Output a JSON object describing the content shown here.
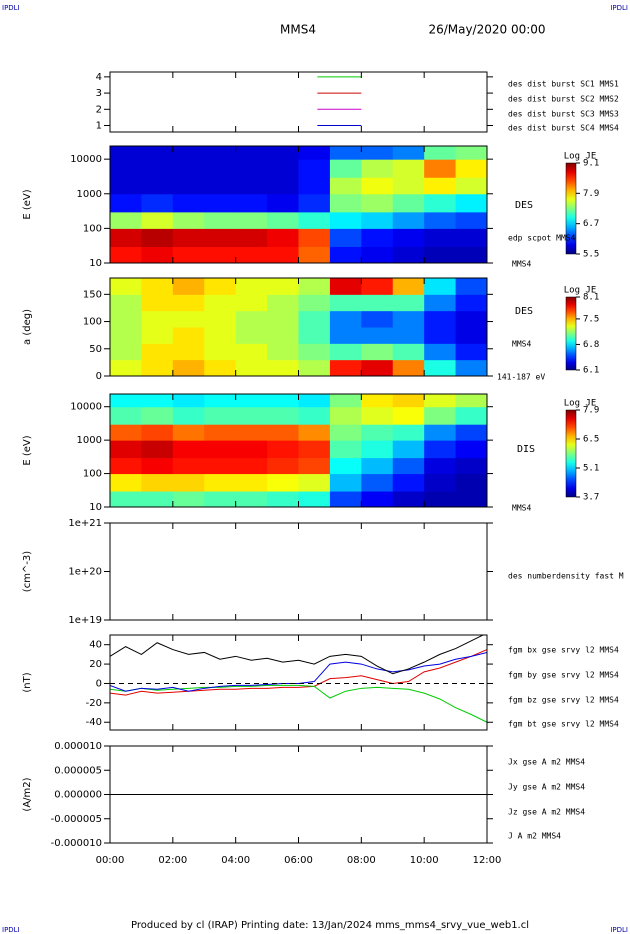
{
  "header": {
    "corner_left": "IPDLI",
    "corner_right": "IPDLI",
    "title": "MMS4",
    "date": "26/May/2020 00:00"
  },
  "footer": {
    "text": "Produced by cl (IRAP)   Printing date: 13/Jan/2024   mms_mms4_srvy_vue_web1.cl",
    "corner_left": "IPDLI",
    "corner_right": "IPDLI"
  },
  "chart_data": [
    {
      "type": "line",
      "ylim": [
        0.6,
        4.3
      ],
      "yticks": [
        1,
        2,
        3,
        4
      ],
      "series": [
        {
          "name": "des dist burst SC1 MMS1",
          "color": "#0000cc",
          "x": [
            6.6,
            8.0
          ],
          "values": [
            1,
            1
          ]
        },
        {
          "name": "des dist burst SC2 MMS2",
          "color": "#cc00cc",
          "x": [
            6.6,
            8.0
          ],
          "values": [
            2,
            2
          ]
        },
        {
          "name": "des dist burst SC3 MMS3",
          "color": "#cc0000",
          "x": [
            6.6,
            8.0
          ],
          "values": [
            3,
            3
          ]
        },
        {
          "name": "des dist burst SC4 MMS4",
          "color": "#00cc00",
          "x": [
            6.6,
            8.0
          ],
          "values": [
            4,
            4
          ]
        }
      ]
    },
    {
      "type": "heatmap",
      "ylabel": "E (eV)",
      "log": true,
      "ylim": [
        10,
        24000
      ],
      "yticks": [
        10,
        100,
        1000,
        10000
      ],
      "labels": [
        "DES",
        "edp scpot MMS4",
        "MMS4"
      ],
      "colorbar": {
        "label": "Log JE",
        "lim": [
          5.5,
          9.1
        ],
        "ticks": [
          5.5,
          6.7,
          7.9,
          9.1
        ]
      },
      "x": [
        0,
        1,
        2,
        3,
        4,
        5,
        6,
        7,
        8,
        9,
        10,
        11,
        12
      ],
      "ybins": [
        10,
        30,
        100,
        300,
        1000,
        3000,
        10000,
        24000
      ],
      "values": [
        [
          8.6,
          8.7,
          8.6,
          8.6,
          8.6,
          8.6,
          8.3,
          6.0,
          5.9,
          5.8,
          5.7,
          5.7
        ],
        [
          8.8,
          8.9,
          8.8,
          8.8,
          8.8,
          8.7,
          8.4,
          6.2,
          6.0,
          5.9,
          5.8,
          5.8
        ],
        [
          7.4,
          7.6,
          7.4,
          7.3,
          7.3,
          7.2,
          7.0,
          6.8,
          6.7,
          6.5,
          6.3,
          6.2
        ],
        [
          6.0,
          6.1,
          6.0,
          6.0,
          6.0,
          5.9,
          6.1,
          7.3,
          7.4,
          7.2,
          7.0,
          6.8
        ],
        [
          5.8,
          5.8,
          5.8,
          5.8,
          5.8,
          5.8,
          6.0,
          7.5,
          7.7,
          7.6,
          7.8,
          7.6
        ],
        [
          5.8,
          5.8,
          5.8,
          5.8,
          5.8,
          5.8,
          6.0,
          7.2,
          7.5,
          7.6,
          8.2,
          7.8
        ],
        [
          5.8,
          5.8,
          5.8,
          5.8,
          5.8,
          5.8,
          5.9,
          6.3,
          6.3,
          6.4,
          7.2,
          7.3
        ]
      ]
    },
    {
      "type": "heatmap",
      "ylabel": "a (deg)",
      "ylim": [
        0,
        180
      ],
      "yticks": [
        0,
        50,
        100,
        150
      ],
      "labels": [
        "DES",
        "MMS4",
        "141-187 eV"
      ],
      "colorbar": {
        "label": "Log JE",
        "lim": [
          6.1,
          8.1
        ],
        "ticks": [
          6.1,
          6.8,
          7.5,
          8.1
        ]
      },
      "x": [
        0,
        1,
        2,
        3,
        4,
        5,
        6,
        7,
        8,
        9,
        10,
        11,
        12
      ],
      "ybins": [
        0,
        30,
        60,
        90,
        120,
        150,
        180
      ],
      "values": [
        [
          7.3,
          7.4,
          7.5,
          7.4,
          7.3,
          7.3,
          7.2,
          7.8,
          7.9,
          7.6,
          6.9,
          6.6
        ],
        [
          7.2,
          7.4,
          7.4,
          7.3,
          7.3,
          7.2,
          7.1,
          7.0,
          7.1,
          7.0,
          6.6,
          6.4
        ],
        [
          7.2,
          7.3,
          7.4,
          7.3,
          7.2,
          7.2,
          7.0,
          6.6,
          6.6,
          6.6,
          6.4,
          6.3
        ],
        [
          7.2,
          7.3,
          7.3,
          7.3,
          7.2,
          7.2,
          7.0,
          6.6,
          6.5,
          6.6,
          6.4,
          6.3
        ],
        [
          7.2,
          7.4,
          7.4,
          7.3,
          7.3,
          7.2,
          7.1,
          7.0,
          7.0,
          7.0,
          6.6,
          6.4
        ],
        [
          7.3,
          7.4,
          7.5,
          7.4,
          7.3,
          7.3,
          7.2,
          7.9,
          7.8,
          7.5,
          6.8,
          6.5
        ]
      ]
    },
    {
      "type": "heatmap",
      "ylabel": "E (eV)",
      "log": true,
      "ylim": [
        10,
        24000
      ],
      "yticks": [
        10,
        100,
        1000,
        10000
      ],
      "labels": [
        "DIS",
        "MMS4"
      ],
      "colorbar": {
        "label": "Log JE",
        "lim": [
          3.7,
          7.9
        ],
        "ticks": [
          3.7,
          5.1,
          6.5,
          7.9
        ]
      },
      "x": [
        0,
        1,
        2,
        3,
        4,
        5,
        6,
        7,
        8,
        9,
        10,
        11,
        12
      ],
      "ybins": [
        10,
        30,
        100,
        300,
        1000,
        3000,
        10000,
        24000
      ],
      "values": [
        [
          5.6,
          5.6,
          5.7,
          5.6,
          5.6,
          5.5,
          5.4,
          4.5,
          4.2,
          4.0,
          3.9,
          3.9
        ],
        [
          6.4,
          6.5,
          6.5,
          6.4,
          6.4,
          6.3,
          6.2,
          5.0,
          4.6,
          4.3,
          4.0,
          3.9
        ],
        [
          7.3,
          7.4,
          7.3,
          7.3,
          7.3,
          7.2,
          7.1,
          5.3,
          5.0,
          4.6,
          4.1,
          4.0
        ],
        [
          7.5,
          7.6,
          7.4,
          7.4,
          7.4,
          7.3,
          7.2,
          5.6,
          5.4,
          5.0,
          4.4,
          4.2
        ],
        [
          7.0,
          7.1,
          6.9,
          7.0,
          7.0,
          7.0,
          6.8,
          5.8,
          5.6,
          5.5,
          4.8,
          4.5
        ],
        [
          5.6,
          5.7,
          5.5,
          5.6,
          5.6,
          5.6,
          5.5,
          6.0,
          6.2,
          6.3,
          5.8,
          5.5
        ],
        [
          5.3,
          5.3,
          5.2,
          5.3,
          5.3,
          5.3,
          5.2,
          5.8,
          6.4,
          6.5,
          6.2,
          6.0
        ]
      ]
    },
    {
      "type": "empty",
      "ylabel": "(cm^-3)",
      "log": true,
      "ylim": [
        1e+19,
        1e+21
      ],
      "yticks": [
        {
          "value": 1e+19,
          "label": "1e+19"
        },
        {
          "value": 1e+20,
          "label": "1e+20"
        },
        {
          "value": 1e+21,
          "label": "1e+21"
        }
      ],
      "labels": [
        "des numberdensity fast M"
      ]
    },
    {
      "type": "line",
      "ylabel": "(nT)",
      "ylim": [
        -48,
        50
      ],
      "yticks": [
        -40,
        -20,
        0,
        20,
        40
      ],
      "zero_line": true,
      "x": [
        0,
        0.5,
        1,
        1.5,
        2,
        2.5,
        3,
        3.5,
        4,
        4.5,
        5,
        5.5,
        6,
        6.5,
        7,
        7.5,
        8,
        8.5,
        9,
        9.5,
        10,
        10.5,
        11,
        11.5,
        12
      ],
      "series": [
        {
          "name": "fgm bx gse srvy l2 MMS4",
          "color": "#e00000",
          "values": [
            -10,
            -12,
            -8,
            -10,
            -9,
            -8,
            -7,
            -6,
            -6,
            -5,
            -5,
            -4,
            -4,
            -3,
            5,
            6,
            8,
            4,
            0,
            2,
            12,
            16,
            22,
            28,
            35
          ]
        },
        {
          "name": "fgm by gse srvy l2 MMS4",
          "color": "#00cc00",
          "values": [
            -6,
            -8,
            -5,
            -7,
            -6,
            -5,
            -4,
            -4,
            -3,
            -3,
            -2,
            -2,
            -2,
            -3,
            -15,
            -8,
            -5,
            -4,
            -5,
            -6,
            -10,
            -16,
            -25,
            -32,
            -40
          ]
        },
        {
          "name": "fgm bz gse srvy l2 MMS4",
          "color": "#0000e0",
          "values": [
            -2,
            -8,
            -5,
            -6,
            -4,
            -8,
            -5,
            -3,
            -2,
            -2,
            -1,
            0,
            0,
            2,
            20,
            22,
            20,
            15,
            12,
            14,
            18,
            20,
            25,
            28,
            32
          ]
        },
        {
          "name": "fgm bt gse srvy l2 MMS4",
          "color": "#000000",
          "values": [
            28,
            38,
            30,
            42,
            35,
            30,
            32,
            25,
            28,
            24,
            26,
            22,
            24,
            20,
            28,
            30,
            28,
            18,
            10,
            15,
            22,
            30,
            36,
            44,
            52
          ]
        }
      ]
    },
    {
      "type": "line",
      "ylabel": "(A/m2)",
      "ylim": [
        -1e-05,
        1e-05
      ],
      "yticks": [
        {
          "value": 1e-05,
          "label": "0.000010"
        },
        {
          "value": 5e-06,
          "label": "0.000005"
        },
        {
          "value": 0,
          "label": "0.000000"
        },
        {
          "value": -5e-06,
          "label": "-0.000005"
        },
        {
          "value": -1e-05,
          "label": "-0.000010"
        }
      ],
      "xlim": [
        0,
        12
      ],
      "xticks": [
        {
          "value": 0,
          "label": "00:00"
        },
        {
          "value": 2,
          "label": "02:00"
        },
        {
          "value": 4,
          "label": "04:00"
        },
        {
          "value": 6,
          "label": "06:00"
        },
        {
          "value": 8,
          "label": "08:00"
        },
        {
          "value": 10,
          "label": "10:00"
        },
        {
          "value": 12,
          "label": "12:00"
        }
      ],
      "x": [
        0,
        1,
        2,
        3,
        4,
        5,
        6,
        7,
        8,
        9,
        10,
        11,
        12
      ],
      "series": [
        {
          "name": "Jx gse A m2 MMS4",
          "color": "#e00000",
          "values": [
            0,
            0,
            0,
            0,
            0,
            0,
            0,
            0,
            0,
            0,
            0,
            0,
            0
          ]
        },
        {
          "name": "Jy gse A m2 MMS4",
          "color": "#00cc00",
          "values": [
            0,
            0,
            0,
            0,
            0,
            0,
            0,
            0,
            0,
            0,
            0,
            0,
            0
          ]
        },
        {
          "name": "Jz gse A m2 MMS4",
          "color": "#0000e0",
          "values": [
            0,
            0,
            0,
            0,
            0,
            0,
            0,
            0,
            0,
            0,
            0,
            0,
            0
          ]
        },
        {
          "name": "J A m2 MMS4",
          "color": "#000000",
          "values": [
            0,
            0,
            0,
            0,
            0,
            0,
            0,
            0,
            0,
            0,
            0,
            0,
            0
          ]
        }
      ]
    }
  ]
}
